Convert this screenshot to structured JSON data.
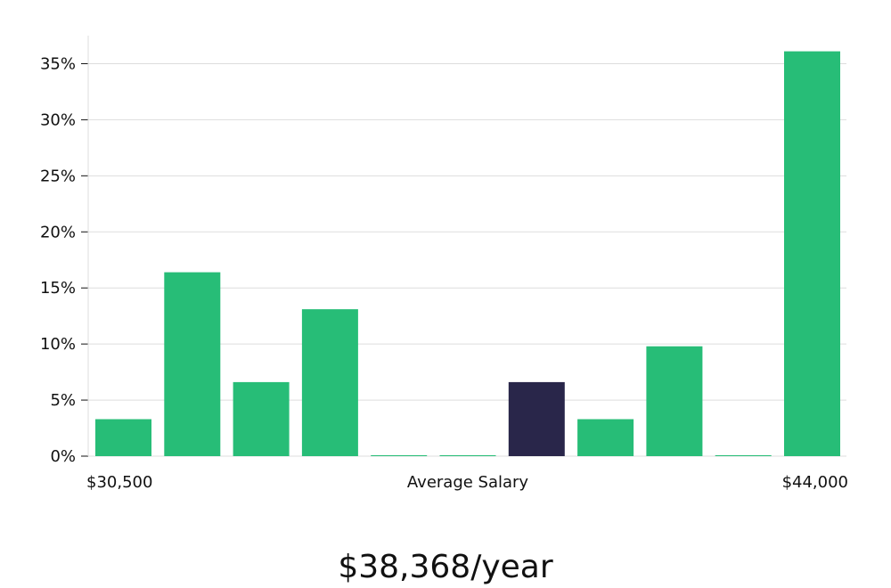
{
  "chart_data": {
    "type": "bar",
    "values": [
      3.3,
      16.4,
      6.6,
      13.1,
      0,
      0,
      6.6,
      3.3,
      9.8,
      0,
      36.1
    ],
    "highlight_index": 6,
    "xlabel": "Average Salary",
    "x_min_label": "$30,500",
    "x_max_label": "$44,000",
    "ylim": [
      0,
      37.5
    ],
    "yticks": [
      0,
      5,
      10,
      15,
      20,
      25,
      30,
      35
    ],
    "ytick_suffix": "%",
    "grid": true,
    "colors": {
      "bar": "#27bd77",
      "highlight": "#29264a",
      "grid": "#dddddd",
      "text": "#111111"
    }
  },
  "summary": {
    "average_salary": "$38,368/year"
  }
}
